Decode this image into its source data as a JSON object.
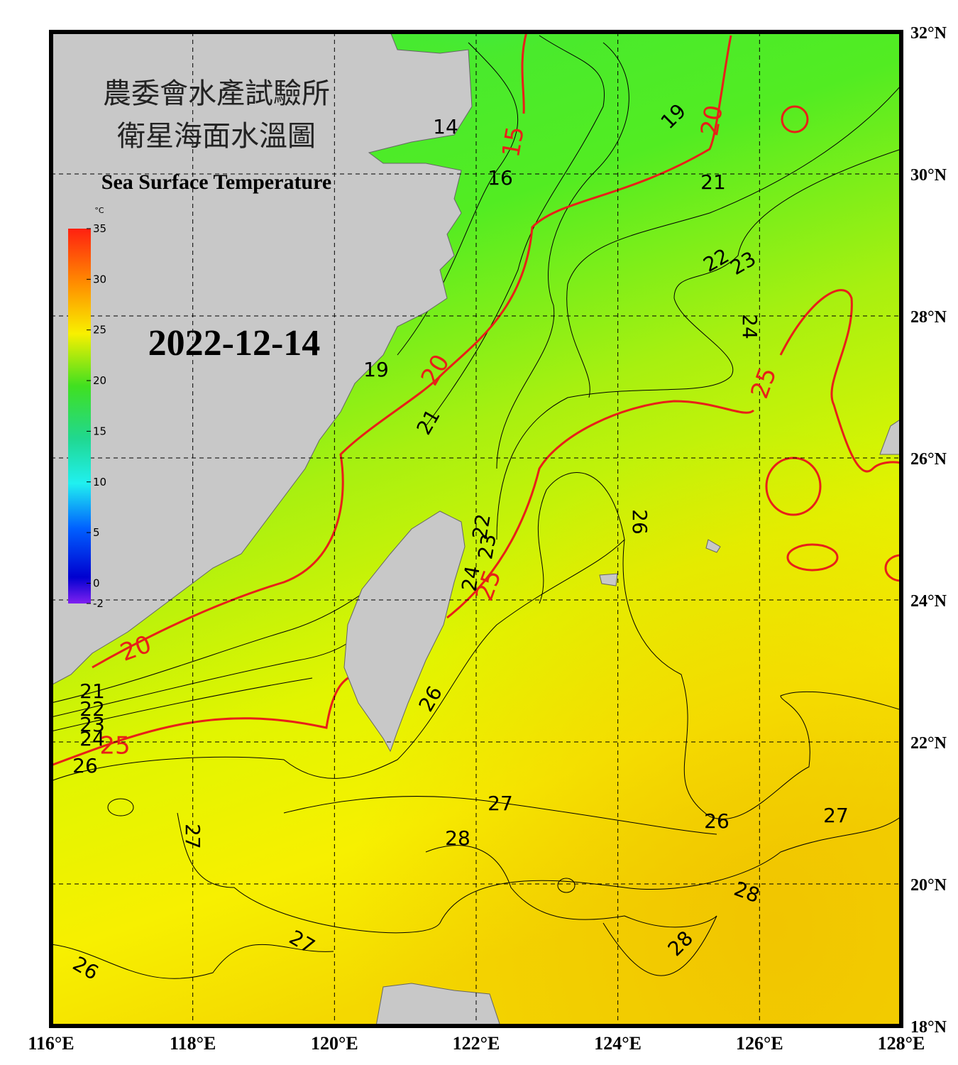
{
  "title_zh_1": "農委會水產試驗所",
  "title_zh_2": "衛星海面水溫圖",
  "title_en": "Sea Surface Temperature",
  "date": "2022-12-14",
  "colorbar": {
    "unit": "°C",
    "range": [
      -2,
      35
    ],
    "ticks": [
      35,
      30,
      25,
      20,
      15,
      10,
      5,
      0,
      -2
    ]
  },
  "lon_ticks": [
    {
      "value": 116,
      "label": "116°E"
    },
    {
      "value": 118,
      "label": "118°E"
    },
    {
      "value": 120,
      "label": "120°E"
    },
    {
      "value": 122,
      "label": "122°E"
    },
    {
      "value": 124,
      "label": "124°E"
    },
    {
      "value": 126,
      "label": "126°E"
    },
    {
      "value": 128,
      "label": "128°E"
    }
  ],
  "lat_ticks": [
    {
      "value": 32,
      "label": "32°N"
    },
    {
      "value": 30,
      "label": "30°N"
    },
    {
      "value": 28,
      "label": "28°N"
    },
    {
      "value": 26,
      "label": "26°N"
    },
    {
      "value": 24,
      "label": "24°N"
    },
    {
      "value": 22,
      "label": "22°N"
    },
    {
      "value": 20,
      "label": "20°N"
    },
    {
      "value": 18,
      "label": "18°N"
    }
  ],
  "contour_labels": [
    14,
    15,
    16,
    19,
    20,
    21,
    22,
    23,
    24,
    25,
    19,
    20,
    21,
    22,
    23,
    24,
    25,
    26,
    20,
    21,
    22,
    23,
    24,
    25,
    26,
    26,
    27,
    28,
    27,
    26,
    27,
    28,
    28,
    27,
    26
  ]
}
